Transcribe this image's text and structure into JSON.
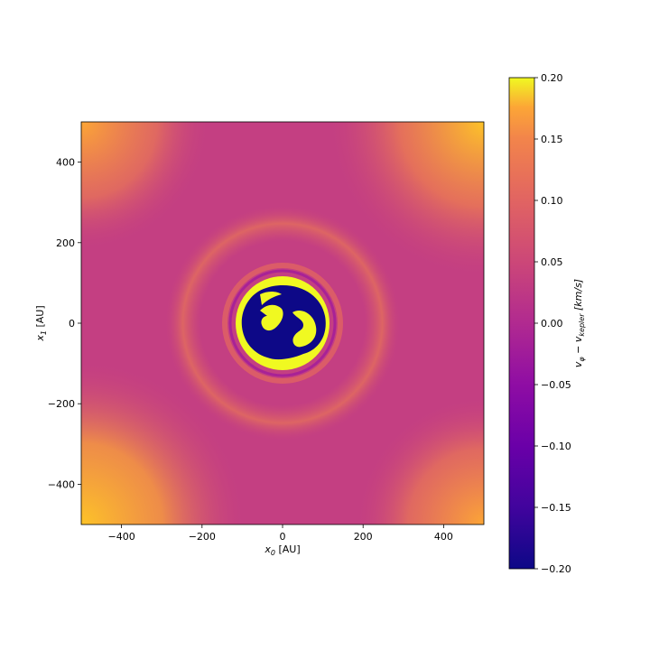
{
  "chart_data": {
    "type": "heatmap",
    "title": "",
    "xlabel": "x_0 [AU]",
    "ylabel": "x_1 [AU]",
    "xlabel_parts": {
      "base": "x",
      "sub": "0",
      "unit": " [AU]"
    },
    "ylabel_parts": {
      "base": "x",
      "sub": "1",
      "unit": " [AU]"
    },
    "xlim": [
      -500,
      500
    ],
    "ylim": [
      -500,
      500
    ],
    "xticks": [
      -400,
      -200,
      0,
      200,
      400
    ],
    "yticks": [
      -400,
      -200,
      0,
      200,
      400
    ],
    "xtick_labels": [
      "−400",
      "−200",
      "0",
      "200",
      "400"
    ],
    "ytick_labels": [
      "−400",
      "−200",
      "0",
      "200",
      "400"
    ],
    "grid": false,
    "colormap": "plasma",
    "colorbar": {
      "label": "vφ − vkepler [km/s]",
      "label_parts": {
        "v1": "v",
        "s1": "φ",
        "op": " − ",
        "v2": "v",
        "s2": "kepler",
        "unit": " [km/s]"
      },
      "vmin": -0.2,
      "vmax": 0.2,
      "ticks": [
        0.2,
        0.15,
        0.1,
        0.05,
        0.0,
        -0.05,
        -0.1,
        -0.15,
        -0.2
      ],
      "tick_labels": [
        "0.20",
        "0.15",
        "0.10",
        "0.05",
        "0.00",
        "−0.05",
        "−0.10",
        "−0.15",
        "−0.20"
      ]
    },
    "field": {
      "background_value": -0.02,
      "inner_hole_radius_au": 100,
      "inner_hole_value": -0.2,
      "ring_radius_au": 110,
      "ring_value": 0.2,
      "corner_value": 0.14
    }
  }
}
